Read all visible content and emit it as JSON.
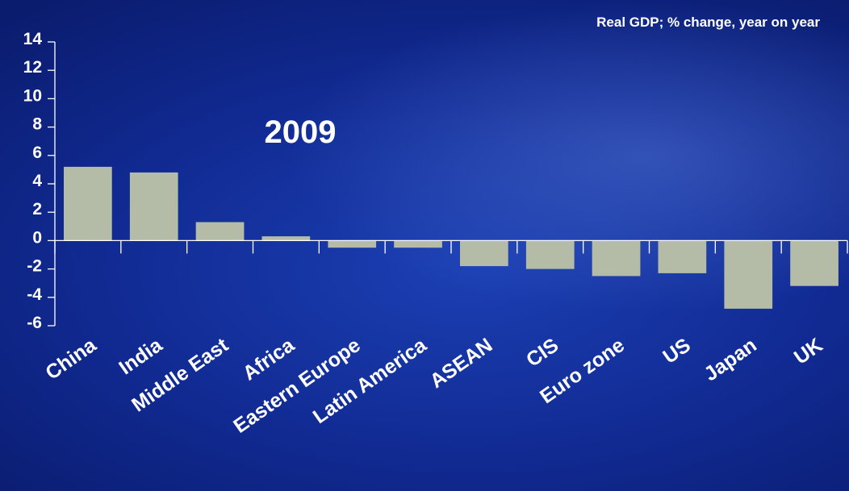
{
  "chart_data": {
    "type": "bar",
    "title": "2009",
    "subtitle": "Real GDP; % change, year on year",
    "xlabel": "",
    "ylabel": "",
    "categories": [
      "China",
      "India",
      "Middle East",
      "Africa",
      "Eastern Europe",
      "Latin America",
      "ASEAN",
      "CIS",
      "Euro zone",
      "US",
      "Japan",
      "UK"
    ],
    "values": [
      5.2,
      4.8,
      1.3,
      0.3,
      -0.5,
      -0.5,
      -1.8,
      -2.0,
      -2.5,
      -2.3,
      -4.8,
      -3.2
    ],
    "ylim": [
      -6,
      14
    ],
    "yticks": [
      "14",
      "12",
      "10",
      "8",
      "6",
      "4",
      "2",
      "0",
      "-2",
      "-4",
      "-6"
    ],
    "bar_color": "#b4bca8",
    "grid": false,
    "legend": "none"
  }
}
